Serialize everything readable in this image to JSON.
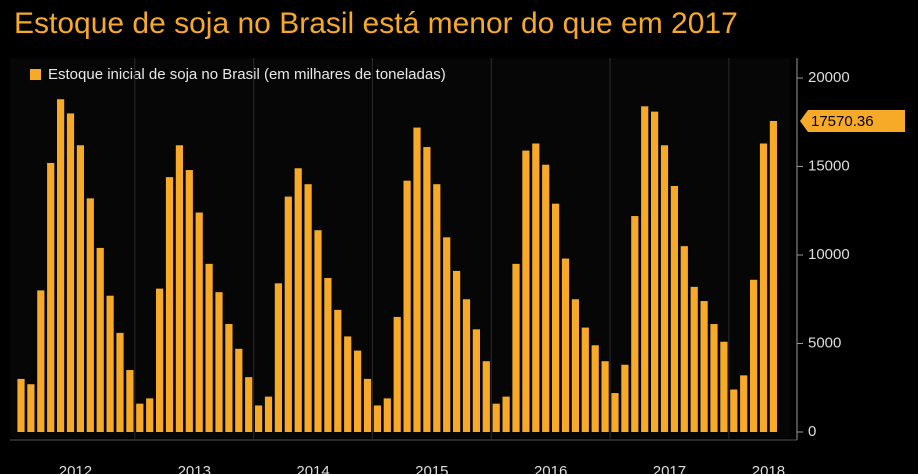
{
  "chart_data": {
    "type": "bar",
    "title": "Estoque de soja no Brasil está menor do que em 2017",
    "categories": [
      null,
      null,
      null,
      null,
      null,
      "2012",
      null,
      null,
      null,
      null,
      null,
      null,
      null,
      null,
      null,
      null,
      null,
      "2013",
      null,
      null,
      null,
      null,
      null,
      null,
      null,
      null,
      null,
      null,
      null,
      "2014",
      null,
      null,
      null,
      null,
      null,
      null,
      null,
      null,
      null,
      null,
      null,
      "2015",
      null,
      null,
      null,
      null,
      null,
      null,
      null,
      null,
      null,
      null,
      null,
      "2016",
      null,
      null,
      null,
      null,
      null,
      null,
      null,
      null,
      null,
      null,
      null,
      "2017",
      null,
      null,
      null,
      null,
      null,
      null,
      null,
      null,
      null,
      "2018",
      null
    ],
    "series": [
      {
        "name": "Estoque inicial de soja no Brasil (em milhares de toneladas)",
        "color": "#f7a928",
        "values": [
          3000,
          2700,
          8000,
          15200,
          18800,
          18000,
          16200,
          13200,
          10400,
          7700,
          5600,
          3500,
          1600,
          1900,
          8100,
          14400,
          16200,
          14800,
          12400,
          9500,
          7900,
          6100,
          4700,
          3100,
          1500,
          2000,
          8400,
          13300,
          14900,
          14000,
          11400,
          8700,
          6900,
          5400,
          4600,
          3000,
          1500,
          1900,
          6500,
          14200,
          17200,
          16100,
          14000,
          11000,
          9100,
          7500,
          5800,
          4000,
          1600,
          2000,
          9500,
          15900,
          16300,
          15100,
          12900,
          9800,
          7500,
          5900,
          4900,
          4000,
          2200,
          3800,
          12200,
          18400,
          18100,
          16200,
          13900,
          10500,
          8200,
          7400,
          6100,
          5100,
          2400,
          3200,
          8600,
          16300,
          17570.36
        ]
      }
    ],
    "ylim": [
      0,
      20000
    ],
    "yticks": [
      0,
      5000,
      10000,
      15000,
      20000
    ]
  }
}
